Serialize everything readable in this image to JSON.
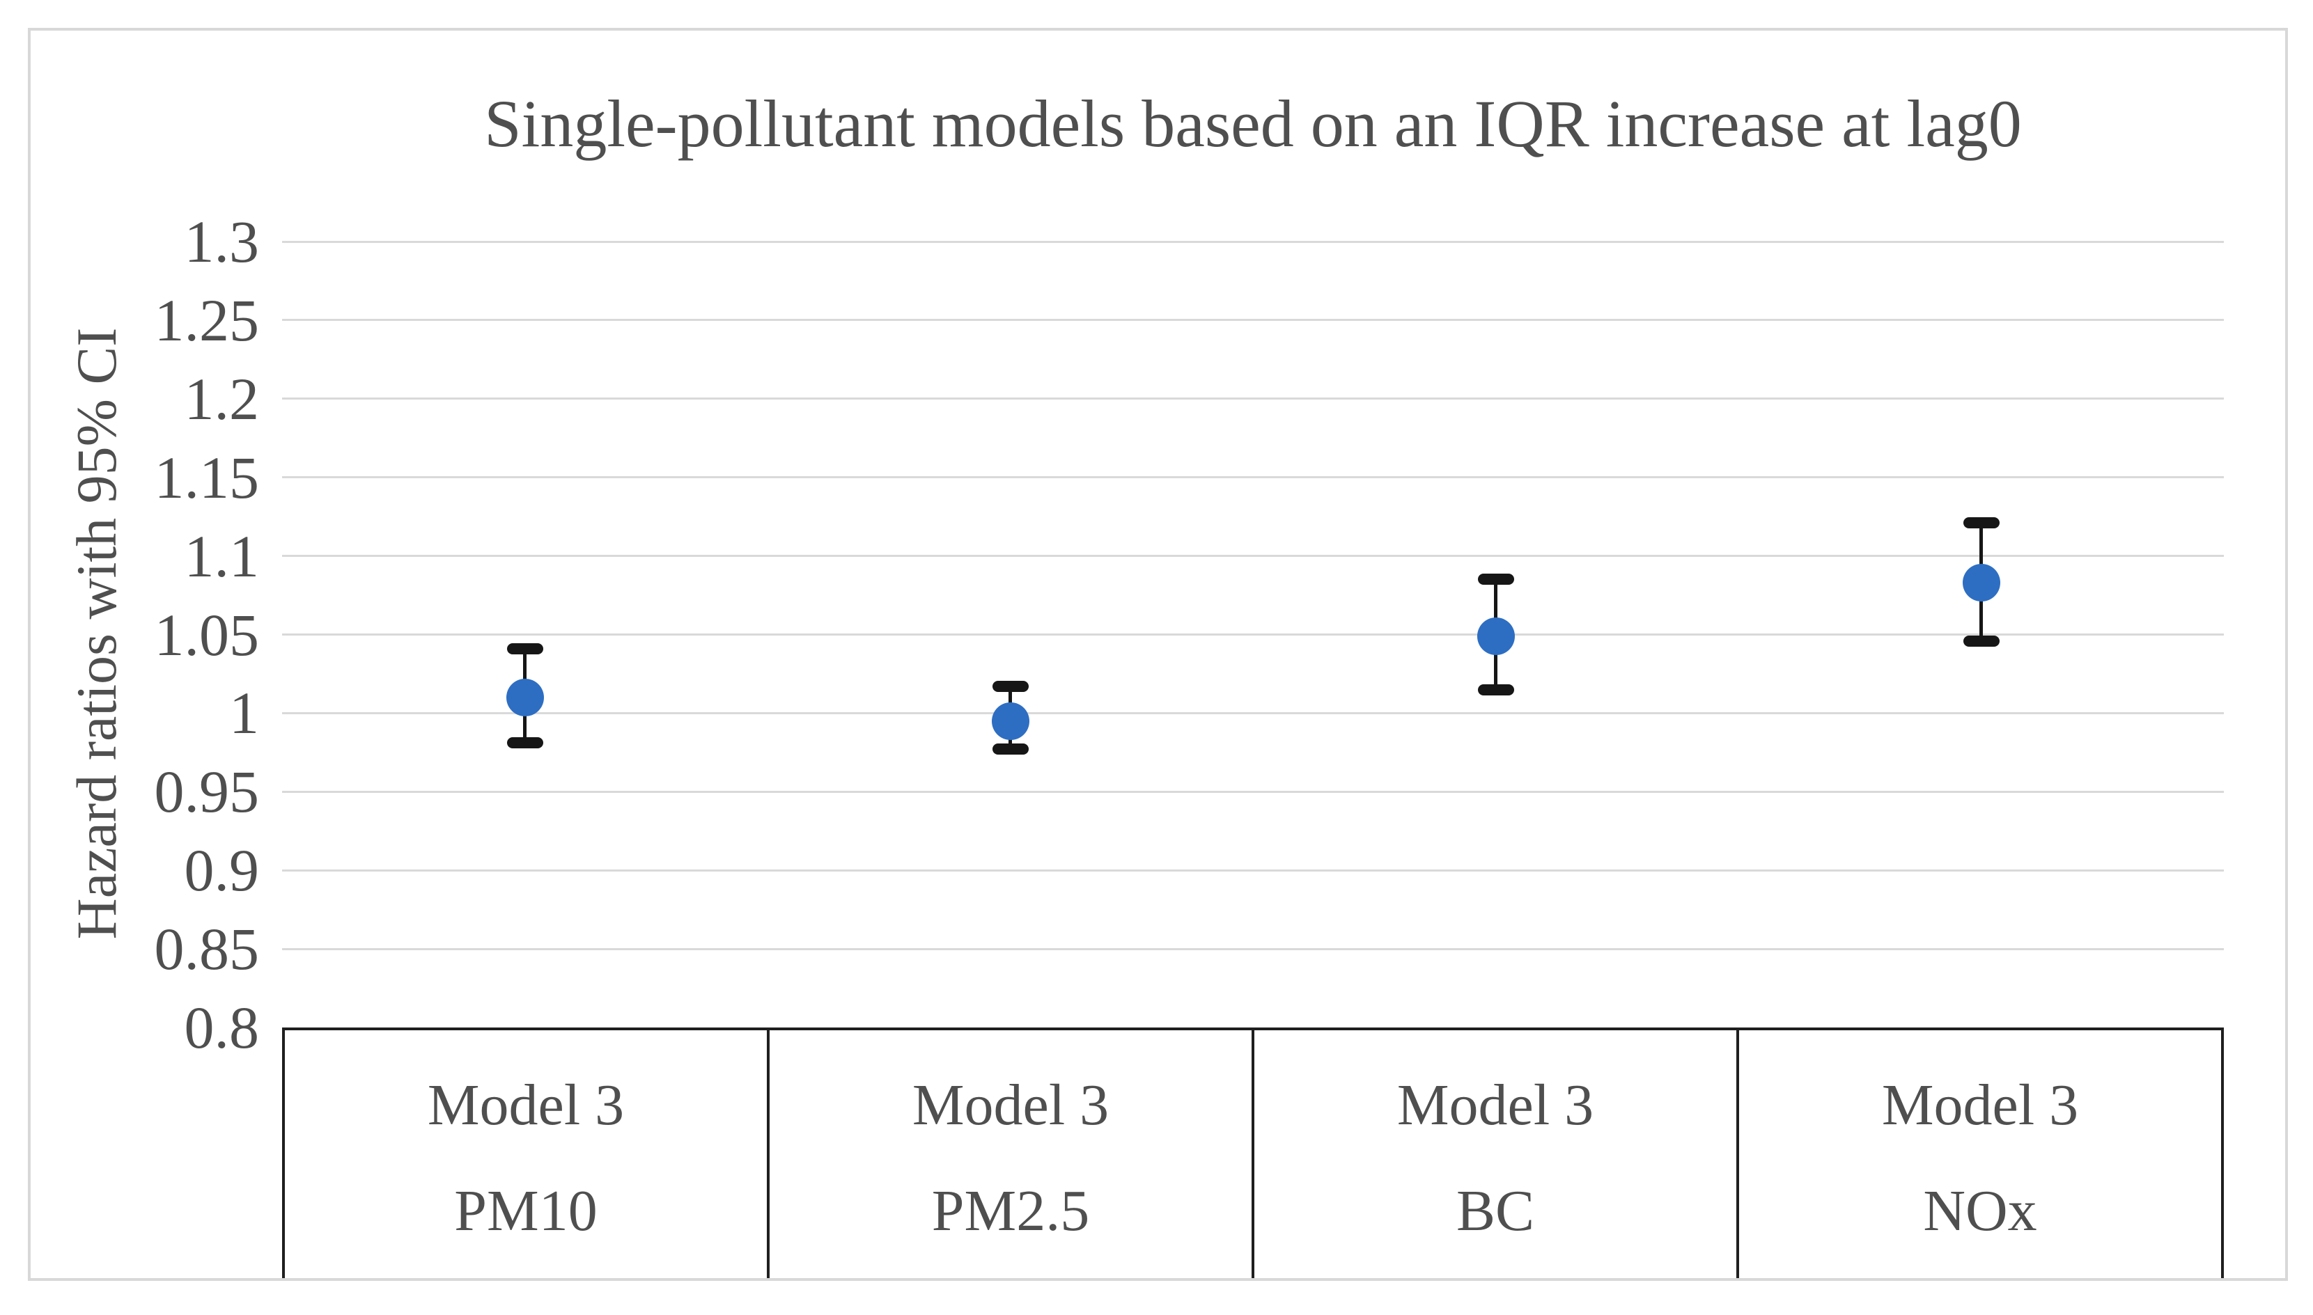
{
  "figure": {
    "background": "#ffffff",
    "border_color": "#d8d8d8"
  },
  "chart_data": {
    "type": "scatter",
    "subtype": "point-estimates-with-error-bars",
    "title": "Single-pollutant models based on an IQR increase at lag0",
    "ylabel": "Hazard ratios with 95% CI",
    "xlabel": "",
    "ylim": [
      0.8,
      1.3
    ],
    "yticks": [
      1.3,
      1.25,
      1.2,
      1.15,
      1.1,
      1.05,
      1,
      0.95,
      0.9,
      0.85,
      0.8
    ],
    "ytick_labels": [
      "1.3",
      "1.25",
      "1.2",
      "1.15",
      "1.1",
      "1.05",
      "1",
      "0.95",
      "0.9",
      "0.85",
      "0.8"
    ],
    "grid": true,
    "gridline_color": "#d9d9d9",
    "axis_line_color": "#1f1f1f",
    "text_color": "#4f4f4f",
    "legend": false,
    "categories": [
      {
        "model": "Model 3",
        "pollutant": "PM10"
      },
      {
        "model": "Model 3",
        "pollutant": "PM2.5"
      },
      {
        "model": "Model 3",
        "pollutant": "BC"
      },
      {
        "model": "Model 3",
        "pollutant": "NOx"
      }
    ],
    "series": [
      {
        "name": "Hazard ratio (95% CI)",
        "marker_color": "#2d6ec3",
        "error_bar_color": "#161616",
        "points": [
          {
            "category": "PM10",
            "hr": 1.01,
            "ci_low": 0.981,
            "ci_high": 1.041
          },
          {
            "category": "PM2.5",
            "hr": 0.995,
            "ci_low": 0.977,
            "ci_high": 1.017
          },
          {
            "category": "BC",
            "hr": 1.049,
            "ci_low": 1.015,
            "ci_high": 1.085
          },
          {
            "category": "NOx",
            "hr": 1.083,
            "ci_low": 1.046,
            "ci_high": 1.121
          }
        ]
      }
    ]
  }
}
